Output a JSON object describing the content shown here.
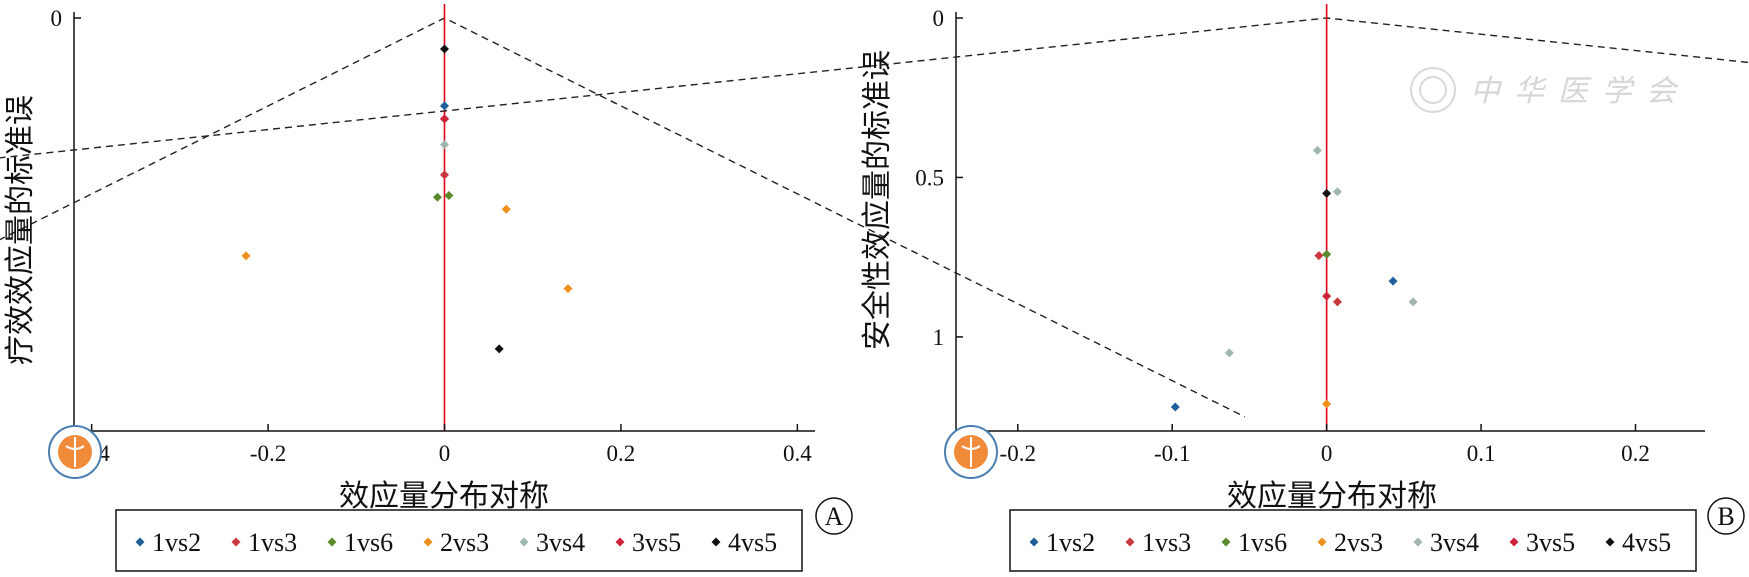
{
  "chart_data": [
    {
      "type": "scatter",
      "panel": "A",
      "xlabel": "效应量分布对称",
      "ylabel": "疗效效应量的标准误",
      "xlim": [
        -0.42,
        0.42
      ],
      "ylim": [
        0,
        0.47
      ],
      "y_reversed": true,
      "x_ticks": [
        -0.4,
        -0.2,
        0,
        0.2,
        0.4
      ],
      "x_tick_labels": [
        "-0.4",
        "-0.2",
        "0",
        "0.2",
        "0.4"
      ],
      "y_ticks": [
        0
      ],
      "y_tick_labels": [
        "0"
      ],
      "reference_line_x": 0,
      "funnel": "dashed pseudo 95% confidence limits",
      "series": [
        {
          "name": "1vs2",
          "color": "#1f5f9a",
          "x": [
            0.0
          ],
          "y": [
            0.102
          ]
        },
        {
          "name": "1vs3",
          "color": "#c8373e",
          "x": [
            0.0,
            0.0
          ],
          "y": [
            0.117,
            0.182
          ]
        },
        {
          "name": "1vs6",
          "color": "#5c8a2b",
          "x": [
            -0.008,
            0.005
          ],
          "y": [
            0.208,
            0.206
          ]
        },
        {
          "name": "2vs3",
          "color": "#f0901c",
          "x": [
            -0.225,
            0.07,
            0.14
          ],
          "y": [
            0.276,
            0.222,
            0.314
          ]
        },
        {
          "name": "3vs4",
          "color": "#9fb7ad",
          "x": [
            0.0
          ],
          "y": [
            0.147
          ]
        },
        {
          "name": "3vs5",
          "color": "#d0213a",
          "x": [
            0.0
          ],
          "y": [
            0.117
          ]
        },
        {
          "name": "4vs5",
          "color": "#111111",
          "x": [
            0.0,
            0.062
          ],
          "y": [
            0.036,
            0.384
          ]
        }
      ]
    },
    {
      "type": "scatter",
      "panel": "B",
      "xlabel": "效应量分布对称",
      "ylabel": "安全性效应量的标准误",
      "xlim": [
        -0.24,
        0.245
      ],
      "ylim": [
        0,
        1.27
      ],
      "y_reversed": true,
      "x_ticks": [
        -0.2,
        -0.1,
        0,
        0.1,
        0.2
      ],
      "x_tick_labels": [
        "-0.2",
        "-0.1",
        "0",
        "0.1",
        "0.2"
      ],
      "y_ticks": [
        0,
        0.5,
        1
      ],
      "y_tick_labels": [
        "0",
        "0.5",
        "1"
      ],
      "reference_line_x": 0,
      "funnel": "dashed pseudo 95% confidence limits",
      "series": [
        {
          "name": "1vs2",
          "color": "#1f5f9a",
          "x": [
            -0.098,
            0.043
          ],
          "y": [
            1.22,
            0.825
          ]
        },
        {
          "name": "1vs3",
          "color": "#c8373e",
          "x": [
            -0.005,
            0.007
          ],
          "y": [
            0.745,
            0.89
          ]
        },
        {
          "name": "1vs6",
          "color": "#5c8a2b",
          "x": [
            0.0
          ],
          "y": [
            0.741
          ]
        },
        {
          "name": "2vs3",
          "color": "#f0901c",
          "x": [
            0.0
          ],
          "y": [
            1.21
          ]
        },
        {
          "name": "3vs4",
          "color": "#9fb7ad",
          "x": [
            -0.006,
            0.007,
            0.056,
            -0.063
          ],
          "y": [
            0.415,
            0.545,
            0.89,
            1.05
          ]
        },
        {
          "name": "3vs5",
          "color": "#d0213a",
          "x": [
            0.0
          ],
          "y": [
            0.872
          ]
        },
        {
          "name": "4vs5",
          "color": "#111111",
          "x": [
            0.0
          ],
          "y": [
            0.55
          ]
        }
      ]
    }
  ],
  "legend": [
    "1vs2",
    "1vs3",
    "1vs6",
    "2vs3",
    "3vs4",
    "3vs5",
    "4vs5"
  ],
  "watermark": "中华医学会"
}
